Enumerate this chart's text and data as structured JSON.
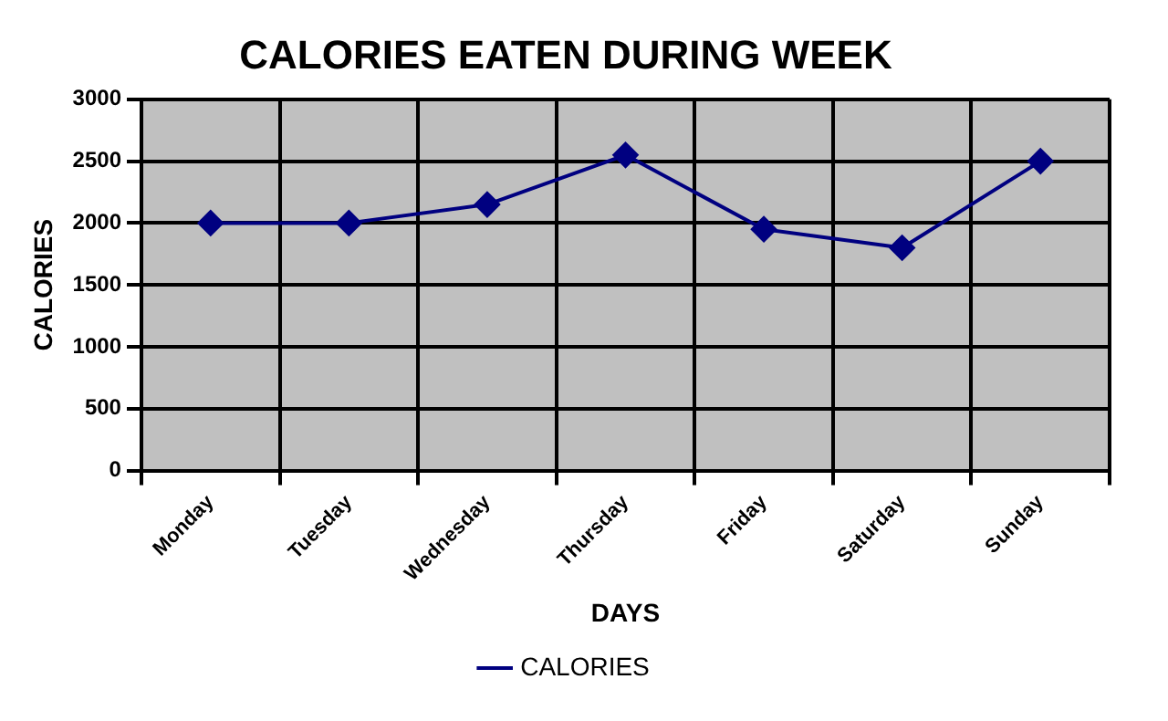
{
  "chart_data": {
    "type": "line",
    "title": "CALORIES EATEN DURING WEEK",
    "xlabel": "DAYS",
    "ylabel": "CALORIES",
    "categories": [
      "Monday",
      "Tuesday",
      "Wednesday",
      "Thursday",
      "Friday",
      "Saturday",
      "Sunday"
    ],
    "series": [
      {
        "name": "CALORIES",
        "color": "#000080",
        "values": [
          2000,
          2000,
          2150,
          2550,
          1950,
          1800,
          2500
        ]
      }
    ],
    "ylim": [
      0,
      3000
    ],
    "yticks": [
      0,
      500,
      1000,
      1500,
      2000,
      2500,
      3000
    ],
    "grid": true,
    "legend": "bottom",
    "marker": "diamond",
    "line_style": "solid"
  }
}
